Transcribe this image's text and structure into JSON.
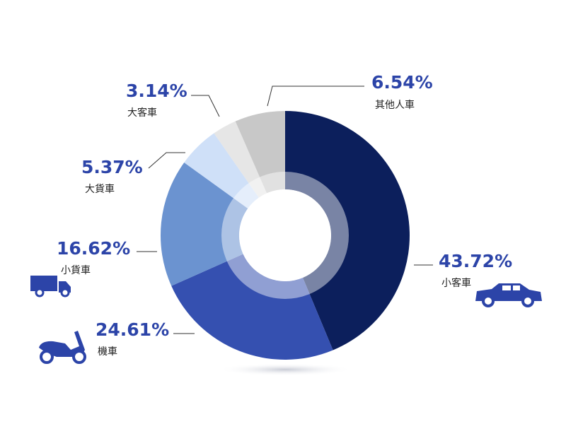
{
  "chart_data": {
    "type": "donut",
    "categories": [
      "小客車",
      "機車",
      "小貨車",
      "大貨車",
      "大客車",
      "其他人車"
    ],
    "values": [
      43.72,
      24.61,
      16.62,
      5.37,
      3.14,
      6.54
    ],
    "value_labels": [
      "43.72%",
      "24.61%",
      "16.62%",
      "5.37%",
      "3.14%",
      "6.54%"
    ],
    "colors": [
      "#0c1f5c",
      "#3550b0",
      "#6b93d0",
      "#cfe0f8",
      "#e6e6e6",
      "#c8c8c8"
    ]
  }
}
